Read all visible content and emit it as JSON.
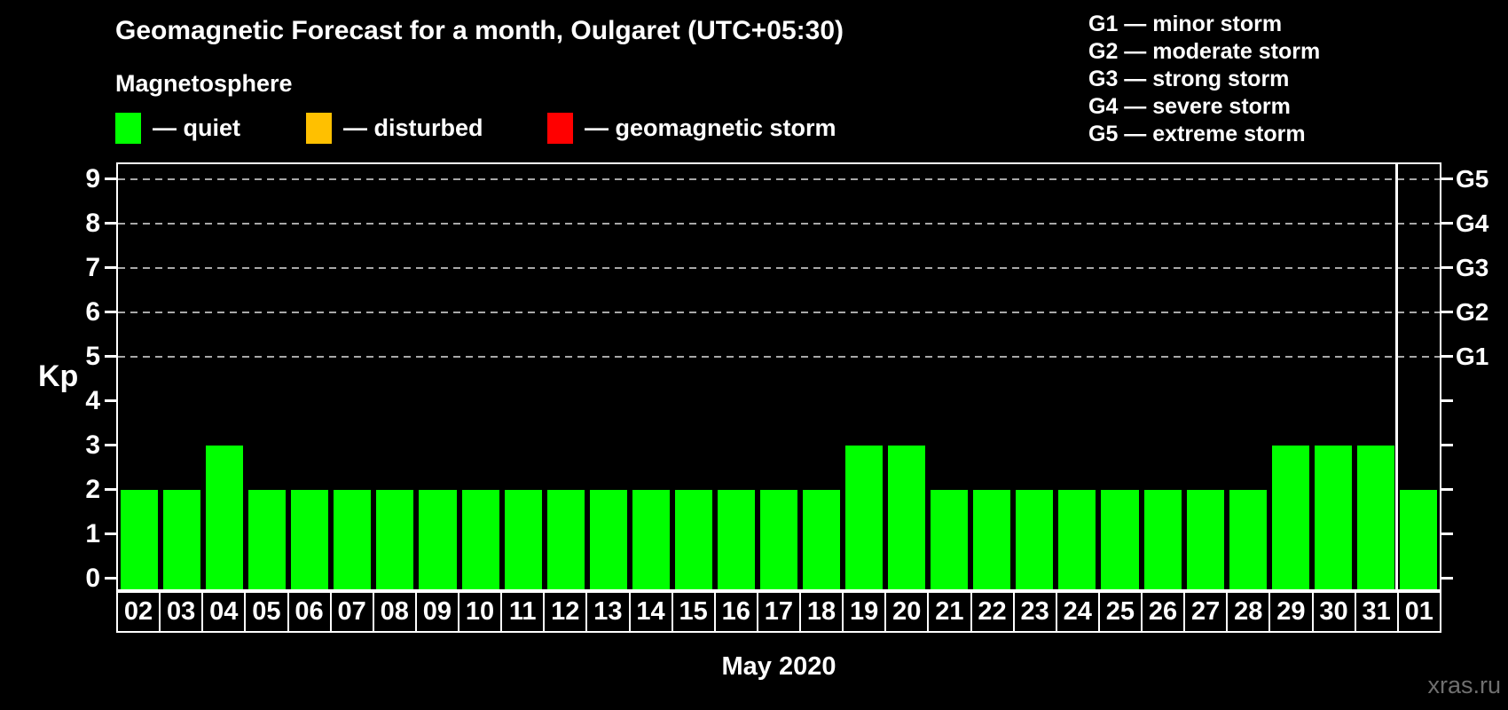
{
  "title": "Geomagnetic Forecast for a month, Oulgaret (UTC+05:30)",
  "legend": {
    "heading": "Magnetosphere",
    "items": [
      {
        "name": "quiet",
        "label": "— quiet",
        "color": "#00ff00"
      },
      {
        "name": "disturbed",
        "label": "— disturbed",
        "color": "#ffc000"
      },
      {
        "name": "geomagnetic-storm",
        "label": "— geomagnetic storm",
        "color": "#ff0000"
      }
    ]
  },
  "storm_scale": [
    "G1 — minor storm",
    "G2 — moderate storm",
    "G3 — strong storm",
    "G4 — severe storm",
    "G5 — extreme storm"
  ],
  "watermark": "xras.ru",
  "chart_data": {
    "type": "bar",
    "title": "Geomagnetic Forecast for a month, Oulgaret (UTC+05:30)",
    "xlabel": "May 2020",
    "ylabel": "Kp",
    "categories": [
      "02",
      "03",
      "04",
      "05",
      "06",
      "07",
      "08",
      "09",
      "10",
      "11",
      "12",
      "13",
      "14",
      "15",
      "16",
      "17",
      "18",
      "19",
      "20",
      "21",
      "22",
      "23",
      "24",
      "25",
      "26",
      "27",
      "28",
      "29",
      "30",
      "31",
      "01"
    ],
    "values": [
      2,
      2,
      3,
      2,
      2,
      2,
      2,
      2,
      2,
      2,
      2,
      2,
      2,
      2,
      2,
      2,
      2,
      3,
      3,
      2,
      2,
      2,
      2,
      2,
      2,
      2,
      2,
      3,
      3,
      3,
      2
    ],
    "bar_color": "#00ff00",
    "ylim": [
      -0.3,
      9.4
    ],
    "yticks": [
      0,
      1,
      2,
      3,
      4,
      5,
      6,
      7,
      8,
      9
    ],
    "gridlines_at": [
      5,
      6,
      7,
      8,
      9
    ],
    "grid_style": "dashed",
    "right_axis_labels": [
      {
        "kp": 5,
        "label": "G1"
      },
      {
        "kp": 6,
        "label": "G2"
      },
      {
        "kp": 7,
        "label": "G3"
      },
      {
        "kp": 8,
        "label": "G4"
      },
      {
        "kp": 9,
        "label": "G5"
      }
    ],
    "separator_before_category": "01",
    "legend_position": "top-left"
  }
}
